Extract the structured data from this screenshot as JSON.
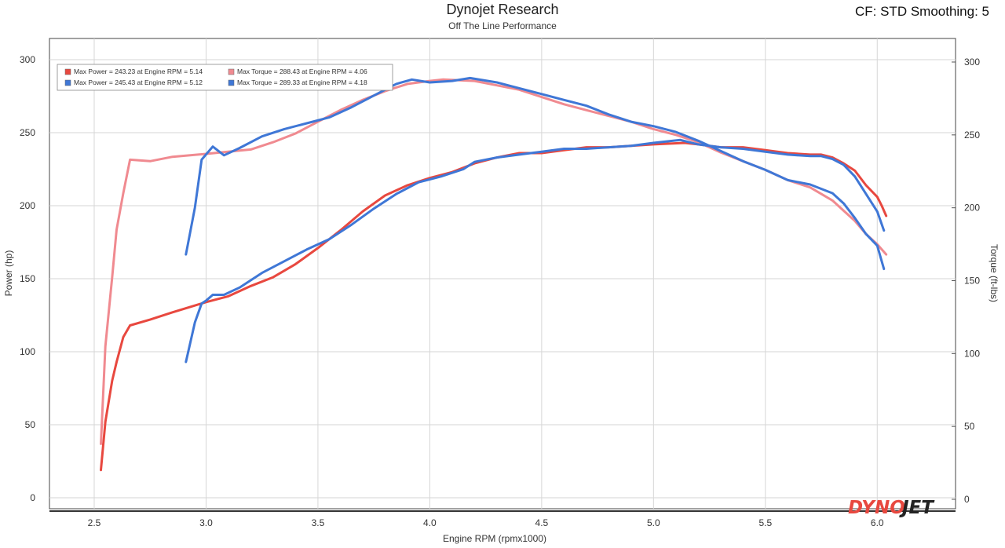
{
  "header": {
    "title": "Dynojet Research",
    "subtitle": "Off The Line Performance",
    "cf_text": "CF: STD Smoothing: 5"
  },
  "logo": {
    "part1": "DYNO",
    "part2": "JET"
  },
  "colors": {
    "red": "#e8483f",
    "pink": "#f08a90",
    "blue": "#3f77d6",
    "grid": "#d6d6d6"
  },
  "chart_data": {
    "type": "line",
    "xlabel": "Engine RPM (rpmx1000)",
    "ylabel_left": "Power (hp)",
    "ylabel_right": "Torque (ft-lbs)",
    "xlim": [
      2.3,
      6.35
    ],
    "ylim_left": [
      0,
      310
    ],
    "ylim_right": [
      0,
      310
    ],
    "x_ticks": [
      "2.5",
      "3.0",
      "3.5",
      "4.0",
      "4.5",
      "5.0",
      "5.5",
      "6.0"
    ],
    "y_ticks_left": [
      "0",
      "50",
      "100",
      "150",
      "200",
      "250",
      "300"
    ],
    "y_ticks_right": [
      "0",
      "50",
      "100",
      "150",
      "200",
      "250",
      "300"
    ],
    "grid": true,
    "legend": [
      {
        "text": "Max Power = 243.23 at Engine RPM = 5.14",
        "color": "#e8483f"
      },
      {
        "text": "Max Torque = 288.43 at Engine RPM = 4.06",
        "color": "#f08a90"
      },
      {
        "text": "Max Power = 245.43 at Engine RPM = 5.12",
        "color": "#3f77d6"
      },
      {
        "text": "Max Torque = 289.33 at Engine RPM = 4.18",
        "color": "#3f77d6"
      }
    ],
    "series": [
      {
        "color": "#e8483f",
        "axis": "left",
        "points": [
          [
            2.53,
            19
          ],
          [
            2.55,
            52
          ],
          [
            2.58,
            80
          ],
          [
            2.6,
            93
          ],
          [
            2.63,
            110
          ],
          [
            2.66,
            118
          ],
          [
            2.75,
            122
          ],
          [
            2.85,
            127
          ],
          [
            3.0,
            134
          ],
          [
            3.1,
            138
          ],
          [
            3.2,
            145
          ],
          [
            3.3,
            151
          ],
          [
            3.4,
            160
          ],
          [
            3.5,
            171
          ],
          [
            3.6,
            183
          ],
          [
            3.7,
            196
          ],
          [
            3.8,
            207
          ],
          [
            3.9,
            214
          ],
          [
            4.0,
            219
          ],
          [
            4.1,
            223
          ],
          [
            4.2,
            229
          ],
          [
            4.3,
            233
          ],
          [
            4.4,
            236
          ],
          [
            4.5,
            236
          ],
          [
            4.6,
            238
          ],
          [
            4.7,
            240
          ],
          [
            4.8,
            240
          ],
          [
            4.9,
            241
          ],
          [
            5.0,
            242
          ],
          [
            5.14,
            243
          ],
          [
            5.2,
            242
          ],
          [
            5.3,
            240
          ],
          [
            5.4,
            240
          ],
          [
            5.5,
            238
          ],
          [
            5.6,
            236
          ],
          [
            5.7,
            235
          ],
          [
            5.75,
            235
          ],
          [
            5.8,
            233
          ],
          [
            5.85,
            229
          ],
          [
            5.9,
            224
          ],
          [
            5.95,
            214
          ],
          [
            6.0,
            206
          ],
          [
            6.02,
            200
          ],
          [
            6.04,
            193
          ]
        ]
      },
      {
        "color": "#f08a90",
        "axis": "right",
        "points": [
          [
            2.53,
            38
          ],
          [
            2.55,
            105
          ],
          [
            2.58,
            152
          ],
          [
            2.6,
            185
          ],
          [
            2.63,
            210
          ],
          [
            2.66,
            233
          ],
          [
            2.75,
            232
          ],
          [
            2.85,
            235
          ],
          [
            3.0,
            237
          ],
          [
            3.2,
            240
          ],
          [
            3.3,
            245
          ],
          [
            3.4,
            251
          ],
          [
            3.5,
            259
          ],
          [
            3.6,
            267
          ],
          [
            3.7,
            274
          ],
          [
            3.8,
            280
          ],
          [
            3.9,
            285
          ],
          [
            4.0,
            287
          ],
          [
            4.06,
            288
          ],
          [
            4.2,
            287
          ],
          [
            4.3,
            284
          ],
          [
            4.4,
            281
          ],
          [
            4.5,
            276
          ],
          [
            4.6,
            271
          ],
          [
            4.7,
            267
          ],
          [
            4.8,
            263
          ],
          [
            4.9,
            259
          ],
          [
            5.0,
            254
          ],
          [
            5.1,
            250
          ],
          [
            5.2,
            245
          ],
          [
            5.3,
            238
          ],
          [
            5.4,
            232
          ],
          [
            5.5,
            226
          ],
          [
            5.6,
            219
          ],
          [
            5.7,
            214
          ],
          [
            5.8,
            205
          ],
          [
            5.85,
            198
          ],
          [
            5.9,
            191
          ],
          [
            5.95,
            182
          ],
          [
            6.0,
            175
          ],
          [
            6.04,
            168
          ]
        ]
      },
      {
        "color": "#3f77d6",
        "axis": "left",
        "points": [
          [
            2.91,
            93
          ],
          [
            2.95,
            120
          ],
          [
            2.98,
            133
          ],
          [
            3.0,
            135
          ],
          [
            3.03,
            139
          ],
          [
            3.08,
            139
          ],
          [
            3.15,
            144
          ],
          [
            3.25,
            154
          ],
          [
            3.35,
            162
          ],
          [
            3.45,
            170
          ],
          [
            3.55,
            177
          ],
          [
            3.65,
            187
          ],
          [
            3.75,
            198
          ],
          [
            3.85,
            208
          ],
          [
            3.95,
            216
          ],
          [
            4.05,
            220
          ],
          [
            4.15,
            225
          ],
          [
            4.2,
            230
          ],
          [
            4.3,
            233
          ],
          [
            4.4,
            235
          ],
          [
            4.5,
            237
          ],
          [
            4.6,
            239
          ],
          [
            4.7,
            239
          ],
          [
            4.8,
            240
          ],
          [
            4.9,
            241
          ],
          [
            5.0,
            243
          ],
          [
            5.12,
            245
          ],
          [
            5.2,
            242
          ],
          [
            5.3,
            240
          ],
          [
            5.4,
            239
          ],
          [
            5.5,
            237
          ],
          [
            5.6,
            235
          ],
          [
            5.7,
            234
          ],
          [
            5.75,
            234
          ],
          [
            5.8,
            232
          ],
          [
            5.85,
            228
          ],
          [
            5.9,
            220
          ],
          [
            5.95,
            208
          ],
          [
            6.0,
            196
          ],
          [
            6.03,
            183
          ]
        ]
      },
      {
        "color": "#3f77d6",
        "axis": "right",
        "points": [
          [
            2.91,
            168
          ],
          [
            2.95,
            200
          ],
          [
            2.98,
            233
          ],
          [
            3.03,
            242
          ],
          [
            3.08,
            236
          ],
          [
            3.15,
            241
          ],
          [
            3.25,
            249
          ],
          [
            3.35,
            254
          ],
          [
            3.45,
            258
          ],
          [
            3.55,
            262
          ],
          [
            3.65,
            269
          ],
          [
            3.75,
            277
          ],
          [
            3.85,
            285
          ],
          [
            3.92,
            288
          ],
          [
            4.0,
            286
          ],
          [
            4.1,
            287
          ],
          [
            4.18,
            289
          ],
          [
            4.3,
            286
          ],
          [
            4.4,
            282
          ],
          [
            4.5,
            278
          ],
          [
            4.6,
            274
          ],
          [
            4.7,
            270
          ],
          [
            4.8,
            264
          ],
          [
            4.9,
            259
          ],
          [
            5.0,
            256
          ],
          [
            5.1,
            252
          ],
          [
            5.2,
            246
          ],
          [
            5.3,
            239
          ],
          [
            5.4,
            232
          ],
          [
            5.5,
            226
          ],
          [
            5.6,
            219
          ],
          [
            5.7,
            216
          ],
          [
            5.8,
            210
          ],
          [
            5.85,
            203
          ],
          [
            5.9,
            193
          ],
          [
            5.95,
            182
          ],
          [
            6.0,
            174
          ],
          [
            6.03,
            158
          ]
        ]
      }
    ]
  }
}
